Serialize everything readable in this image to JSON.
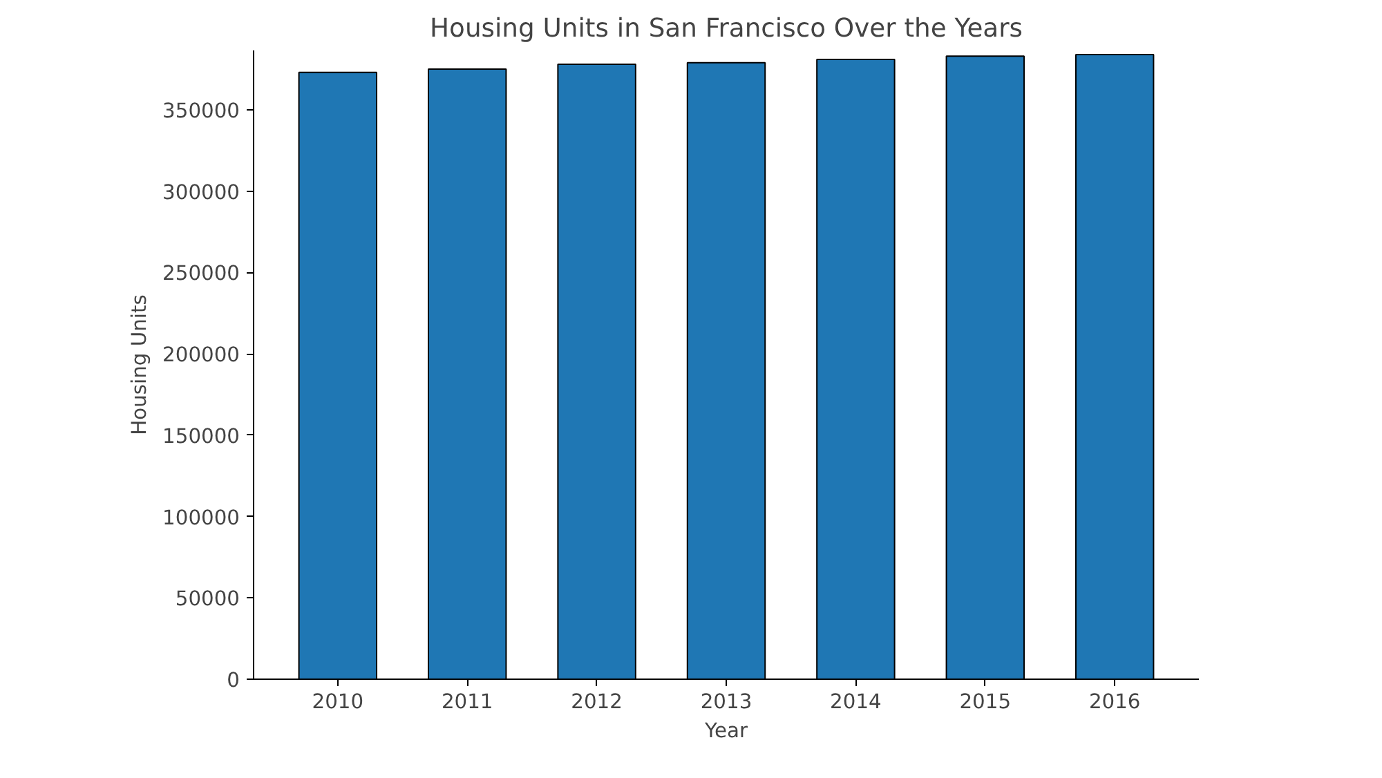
{
  "chart_data": {
    "type": "bar",
    "title": "Housing Units in San Francisco Over the Years",
    "xlabel": "Year",
    "ylabel": "Housing Units",
    "categories": [
      "2010",
      "2011",
      "2012",
      "2013",
      "2014",
      "2015",
      "2016"
    ],
    "values": [
      373000,
      375000,
      378000,
      379000,
      381000,
      383000,
      384000
    ],
    "color": "#1f77b4",
    "ylim": [
      0,
      386500
    ],
    "yticks": [
      0,
      50000,
      100000,
      150000,
      200000,
      250000,
      300000,
      350000
    ],
    "grid": false
  }
}
